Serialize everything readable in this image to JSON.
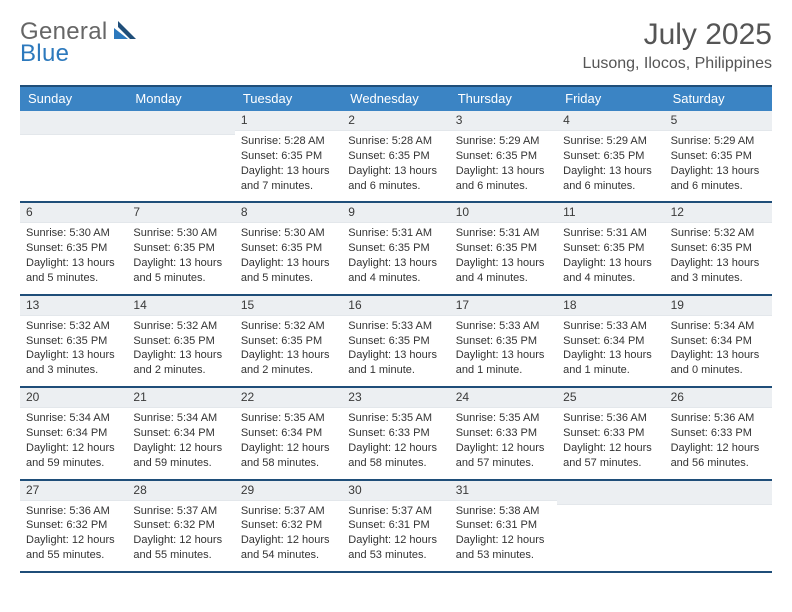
{
  "brand": {
    "text1": "General",
    "text2": "Blue"
  },
  "title": "July 2025",
  "location": "Lusong, Ilocos, Philippines",
  "colors": {
    "header_blue": "#3b84c4",
    "navy": "#1f4e79",
    "daynum_bg": "#eceff2",
    "text": "#222",
    "page": "#ffffff"
  },
  "dow": [
    "Sunday",
    "Monday",
    "Tuesday",
    "Wednesday",
    "Thursday",
    "Friday",
    "Saturday"
  ],
  "weeks": [
    [
      null,
      null,
      {
        "d": "1",
        "sr": "5:28 AM",
        "ss": "6:35 PM",
        "dl": "13 hours and 7 minutes."
      },
      {
        "d": "2",
        "sr": "5:28 AM",
        "ss": "6:35 PM",
        "dl": "13 hours and 6 minutes."
      },
      {
        "d": "3",
        "sr": "5:29 AM",
        "ss": "6:35 PM",
        "dl": "13 hours and 6 minutes."
      },
      {
        "d": "4",
        "sr": "5:29 AM",
        "ss": "6:35 PM",
        "dl": "13 hours and 6 minutes."
      },
      {
        "d": "5",
        "sr": "5:29 AM",
        "ss": "6:35 PM",
        "dl": "13 hours and 6 minutes."
      }
    ],
    [
      {
        "d": "6",
        "sr": "5:30 AM",
        "ss": "6:35 PM",
        "dl": "13 hours and 5 minutes."
      },
      {
        "d": "7",
        "sr": "5:30 AM",
        "ss": "6:35 PM",
        "dl": "13 hours and 5 minutes."
      },
      {
        "d": "8",
        "sr": "5:30 AM",
        "ss": "6:35 PM",
        "dl": "13 hours and 5 minutes."
      },
      {
        "d": "9",
        "sr": "5:31 AM",
        "ss": "6:35 PM",
        "dl": "13 hours and 4 minutes."
      },
      {
        "d": "10",
        "sr": "5:31 AM",
        "ss": "6:35 PM",
        "dl": "13 hours and 4 minutes."
      },
      {
        "d": "11",
        "sr": "5:31 AM",
        "ss": "6:35 PM",
        "dl": "13 hours and 4 minutes."
      },
      {
        "d": "12",
        "sr": "5:32 AM",
        "ss": "6:35 PM",
        "dl": "13 hours and 3 minutes."
      }
    ],
    [
      {
        "d": "13",
        "sr": "5:32 AM",
        "ss": "6:35 PM",
        "dl": "13 hours and 3 minutes."
      },
      {
        "d": "14",
        "sr": "5:32 AM",
        "ss": "6:35 PM",
        "dl": "13 hours and 2 minutes."
      },
      {
        "d": "15",
        "sr": "5:32 AM",
        "ss": "6:35 PM",
        "dl": "13 hours and 2 minutes."
      },
      {
        "d": "16",
        "sr": "5:33 AM",
        "ss": "6:35 PM",
        "dl": "13 hours and 1 minute."
      },
      {
        "d": "17",
        "sr": "5:33 AM",
        "ss": "6:35 PM",
        "dl": "13 hours and 1 minute."
      },
      {
        "d": "18",
        "sr": "5:33 AM",
        "ss": "6:34 PM",
        "dl": "13 hours and 1 minute."
      },
      {
        "d": "19",
        "sr": "5:34 AM",
        "ss": "6:34 PM",
        "dl": "13 hours and 0 minutes."
      }
    ],
    [
      {
        "d": "20",
        "sr": "5:34 AM",
        "ss": "6:34 PM",
        "dl": "12 hours and 59 minutes."
      },
      {
        "d": "21",
        "sr": "5:34 AM",
        "ss": "6:34 PM",
        "dl": "12 hours and 59 minutes."
      },
      {
        "d": "22",
        "sr": "5:35 AM",
        "ss": "6:34 PM",
        "dl": "12 hours and 58 minutes."
      },
      {
        "d": "23",
        "sr": "5:35 AM",
        "ss": "6:33 PM",
        "dl": "12 hours and 58 minutes."
      },
      {
        "d": "24",
        "sr": "5:35 AM",
        "ss": "6:33 PM",
        "dl": "12 hours and 57 minutes."
      },
      {
        "d": "25",
        "sr": "5:36 AM",
        "ss": "6:33 PM",
        "dl": "12 hours and 57 minutes."
      },
      {
        "d": "26",
        "sr": "5:36 AM",
        "ss": "6:33 PM",
        "dl": "12 hours and 56 minutes."
      }
    ],
    [
      {
        "d": "27",
        "sr": "5:36 AM",
        "ss": "6:32 PM",
        "dl": "12 hours and 55 minutes."
      },
      {
        "d": "28",
        "sr": "5:37 AM",
        "ss": "6:32 PM",
        "dl": "12 hours and 55 minutes."
      },
      {
        "d": "29",
        "sr": "5:37 AM",
        "ss": "6:32 PM",
        "dl": "12 hours and 54 minutes."
      },
      {
        "d": "30",
        "sr": "5:37 AM",
        "ss": "6:31 PM",
        "dl": "12 hours and 53 minutes."
      },
      {
        "d": "31",
        "sr": "5:38 AM",
        "ss": "6:31 PM",
        "dl": "12 hours and 53 minutes."
      },
      null,
      null
    ]
  ],
  "labels": {
    "sunrise": "Sunrise: ",
    "sunset": "Sunset: ",
    "daylight": "Daylight: "
  }
}
